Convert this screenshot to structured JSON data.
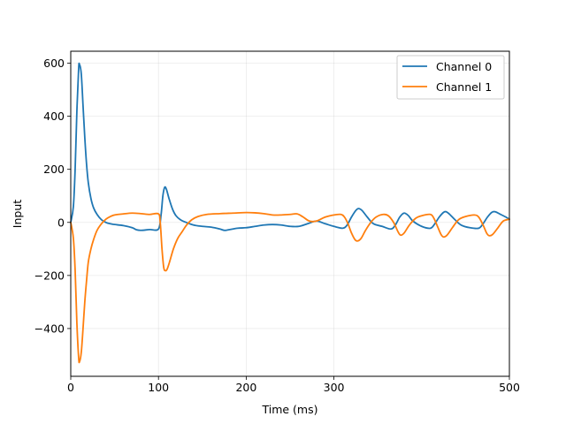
{
  "chart_data": {
    "type": "line",
    "title": "",
    "xlabel": "Time (ms)",
    "ylabel": "Input",
    "xlim": [
      0,
      500
    ],
    "ylim": [
      -580,
      645
    ],
    "xticks": [
      0,
      100,
      200,
      300,
      500
    ],
    "xtick_labels": [
      "0",
      "100",
      "200",
      "300",
      "500"
    ],
    "yticks": [
      -400,
      -200,
      0,
      200,
      400,
      600
    ],
    "ytick_labels": [
      "−400",
      "−200",
      "0",
      "200",
      "400",
      "600"
    ],
    "grid": true,
    "legend_position": "top-right",
    "series": [
      {
        "name": "Channel 0",
        "color": "#1f77b4",
        "points": [
          [
            0,
            0
          ],
          [
            3,
            60
          ],
          [
            5,
            200
          ],
          [
            7,
            420
          ],
          [
            9,
            580
          ],
          [
            10,
            595
          ],
          [
            12,
            560
          ],
          [
            14,
            440
          ],
          [
            16,
            320
          ],
          [
            18,
            220
          ],
          [
            20,
            150
          ],
          [
            23,
            90
          ],
          [
            26,
            55
          ],
          [
            30,
            30
          ],
          [
            35,
            10
          ],
          [
            40,
            0
          ],
          [
            45,
            -5
          ],
          [
            50,
            -8
          ],
          [
            60,
            -12
          ],
          [
            70,
            -20
          ],
          [
            75,
            -28
          ],
          [
            80,
            -30
          ],
          [
            90,
            -27
          ],
          [
            100,
            -25
          ],
          [
            103,
            30
          ],
          [
            105,
            100
          ],
          [
            107,
            132
          ],
          [
            109,
            125
          ],
          [
            112,
            90
          ],
          [
            116,
            50
          ],
          [
            120,
            25
          ],
          [
            125,
            10
          ],
          [
            130,
            2
          ],
          [
            140,
            -10
          ],
          [
            150,
            -15
          ],
          [
            160,
            -18
          ],
          [
            170,
            -25
          ],
          [
            175,
            -30
          ],
          [
            180,
            -28
          ],
          [
            190,
            -22
          ],
          [
            200,
            -20
          ],
          [
            210,
            -15
          ],
          [
            220,
            -10
          ],
          [
            230,
            -8
          ],
          [
            240,
            -10
          ],
          [
            250,
            -15
          ],
          [
            260,
            -15
          ],
          [
            270,
            -5
          ],
          [
            280,
            5
          ],
          [
            290,
            -5
          ],
          [
            300,
            -15
          ],
          [
            310,
            -22
          ],
          [
            315,
            -10
          ],
          [
            320,
            20
          ],
          [
            325,
            45
          ],
          [
            328,
            52
          ],
          [
            332,
            45
          ],
          [
            338,
            20
          ],
          [
            345,
            -5
          ],
          [
            355,
            -15
          ],
          [
            365,
            -25
          ],
          [
            370,
            -10
          ],
          [
            375,
            20
          ],
          [
            380,
            35
          ],
          [
            385,
            25
          ],
          [
            390,
            5
          ],
          [
            400,
            -15
          ],
          [
            410,
            -22
          ],
          [
            415,
            -5
          ],
          [
            420,
            20
          ],
          [
            425,
            38
          ],
          [
            428,
            40
          ],
          [
            432,
            30
          ],
          [
            438,
            10
          ],
          [
            445,
            -10
          ],
          [
            455,
            -20
          ],
          [
            465,
            -22
          ],
          [
            470,
            -5
          ],
          [
            475,
            20
          ],
          [
            480,
            38
          ],
          [
            484,
            40
          ],
          [
            490,
            30
          ],
          [
            496,
            20
          ],
          [
            500,
            12
          ]
        ]
      },
      {
        "name": "Channel 1",
        "color": "#ff7f0e",
        "points": [
          [
            0,
            0
          ],
          [
            3,
            -60
          ],
          [
            5,
            -180
          ],
          [
            7,
            -380
          ],
          [
            9,
            -510
          ],
          [
            10,
            -525
          ],
          [
            12,
            -490
          ],
          [
            14,
            -400
          ],
          [
            16,
            -300
          ],
          [
            18,
            -220
          ],
          [
            20,
            -150
          ],
          [
            23,
            -100
          ],
          [
            26,
            -65
          ],
          [
            30,
            -30
          ],
          [
            35,
            -5
          ],
          [
            40,
            12
          ],
          [
            45,
            22
          ],
          [
            50,
            28
          ],
          [
            60,
            32
          ],
          [
            70,
            35
          ],
          [
            80,
            33
          ],
          [
            90,
            30
          ],
          [
            100,
            32
          ],
          [
            102,
            0
          ],
          [
            104,
            -100
          ],
          [
            106,
            -170
          ],
          [
            108,
            -182
          ],
          [
            110,
            -175
          ],
          [
            113,
            -145
          ],
          [
            117,
            -100
          ],
          [
            122,
            -60
          ],
          [
            127,
            -35
          ],
          [
            132,
            -10
          ],
          [
            138,
            10
          ],
          [
            145,
            22
          ],
          [
            155,
            30
          ],
          [
            170,
            33
          ],
          [
            185,
            35
          ],
          [
            200,
            37
          ],
          [
            210,
            36
          ],
          [
            220,
            33
          ],
          [
            230,
            28
          ],
          [
            240,
            28
          ],
          [
            250,
            30
          ],
          [
            258,
            32
          ],
          [
            265,
            20
          ],
          [
            272,
            5
          ],
          [
            280,
            5
          ],
          [
            290,
            20
          ],
          [
            300,
            28
          ],
          [
            308,
            30
          ],
          [
            312,
            20
          ],
          [
            316,
            -5
          ],
          [
            320,
            -40
          ],
          [
            324,
            -65
          ],
          [
            327,
            -70
          ],
          [
            331,
            -60
          ],
          [
            336,
            -30
          ],
          [
            342,
            0
          ],
          [
            348,
            20
          ],
          [
            356,
            30
          ],
          [
            362,
            25
          ],
          [
            368,
            0
          ],
          [
            373,
            -35
          ],
          [
            376,
            -48
          ],
          [
            380,
            -40
          ],
          [
            386,
            -10
          ],
          [
            393,
            15
          ],
          [
            400,
            25
          ],
          [
            410,
            30
          ],
          [
            414,
            15
          ],
          [
            418,
            -15
          ],
          [
            422,
            -45
          ],
          [
            425,
            -55
          ],
          [
            429,
            -48
          ],
          [
            435,
            -20
          ],
          [
            442,
            10
          ],
          [
            450,
            22
          ],
          [
            460,
            28
          ],
          [
            465,
            20
          ],
          [
            470,
            -10
          ],
          [
            474,
            -40
          ],
          [
            477,
            -50
          ],
          [
            481,
            -45
          ],
          [
            487,
            -20
          ],
          [
            493,
            5
          ],
          [
            500,
            12
          ]
        ]
      }
    ]
  }
}
